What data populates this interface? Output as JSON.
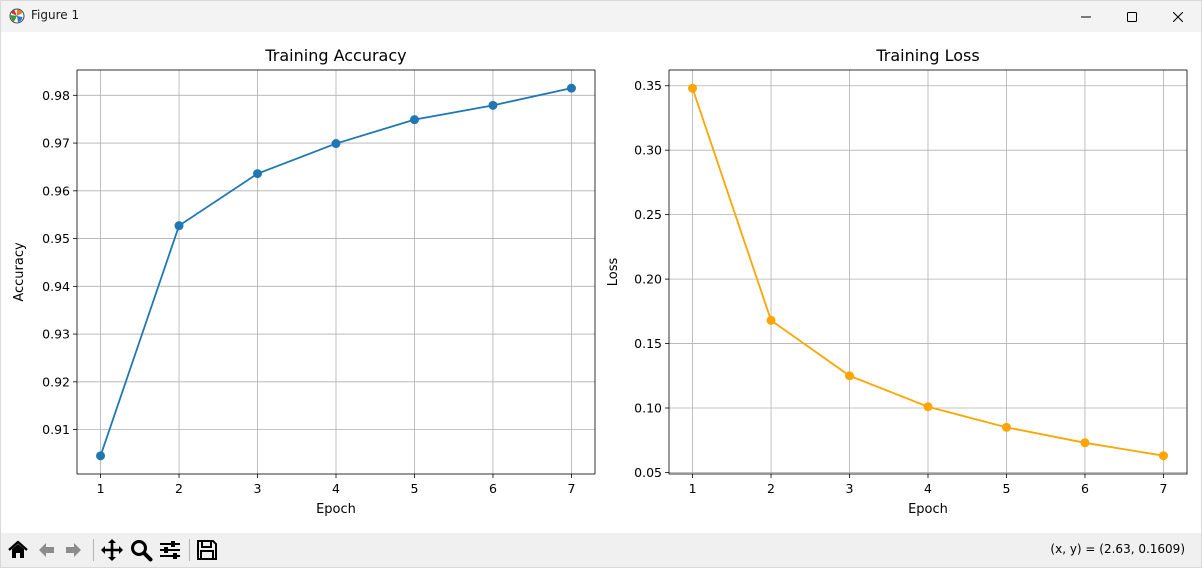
{
  "window": {
    "title": "Figure 1"
  },
  "toolbar": {
    "tools": [
      "home-icon",
      "back-icon",
      "forward-icon",
      "pan-icon",
      "zoom-icon",
      "configure-subplots-icon",
      "save-icon"
    ],
    "coords_text": "(x, y) = (2.63, 0.1609)"
  },
  "chart_data": [
    {
      "type": "line",
      "title": "Training Accuracy",
      "xlabel": "Epoch",
      "ylabel": "Accuracy",
      "x": [
        1,
        2,
        3,
        4,
        5,
        6,
        7
      ],
      "series": [
        {
          "values": [
            0.9045,
            0.9527,
            0.9636,
            0.9699,
            0.9749,
            0.9779,
            0.9815
          ],
          "color": "#1f77b4"
        }
      ],
      "xlim": [
        0.7,
        7.3
      ],
      "ylim": [
        0.9007,
        0.9853
      ],
      "xticks": [
        1,
        2,
        3,
        4,
        5,
        6,
        7
      ],
      "yticks": [
        0.91,
        0.92,
        0.93,
        0.94,
        0.95,
        0.96,
        0.97,
        0.98
      ],
      "xtick_labels": [
        "1",
        "2",
        "3",
        "4",
        "5",
        "6",
        "7"
      ],
      "ytick_labels": [
        "0.91",
        "0.92",
        "0.93",
        "0.94",
        "0.95",
        "0.96",
        "0.97",
        "0.98"
      ],
      "grid": true
    },
    {
      "type": "line",
      "title": "Training Loss",
      "xlabel": "Epoch",
      "ylabel": "Loss",
      "x": [
        1,
        2,
        3,
        4,
        5,
        6,
        7
      ],
      "series": [
        {
          "values": [
            0.348,
            0.168,
            0.125,
            0.101,
            0.085,
            0.073,
            0.063
          ],
          "color": "#ffa500"
        }
      ],
      "xlim": [
        0.7,
        7.3
      ],
      "ylim": [
        0.0488,
        0.3622
      ],
      "xticks": [
        1,
        2,
        3,
        4,
        5,
        6,
        7
      ],
      "yticks": [
        0.05,
        0.1,
        0.15,
        0.2,
        0.25,
        0.3,
        0.35
      ],
      "xtick_labels": [
        "1",
        "2",
        "3",
        "4",
        "5",
        "6",
        "7"
      ],
      "ytick_labels": [
        "0.05",
        "0.10",
        "0.15",
        "0.20",
        "0.25",
        "0.30",
        "0.35"
      ],
      "grid": true
    }
  ]
}
